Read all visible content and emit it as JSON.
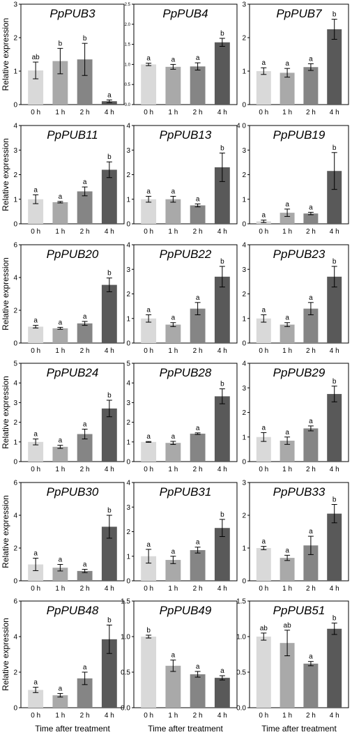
{
  "chart_data": [
    {
      "type": "bar",
      "title": "PpPUB3",
      "categories": [
        "0 h",
        "1 h",
        "2 h",
        "4 h"
      ],
      "values": [
        1.02,
        1.3,
        1.35,
        0.1
      ],
      "errors": [
        0.25,
        0.38,
        0.48,
        0.04
      ],
      "letters": [
        "ab",
        "b",
        "b",
        "a"
      ],
      "ylim": [
        0,
        3
      ],
      "yticks": [
        "0",
        "1",
        "2",
        "3"
      ]
    },
    {
      "type": "bar",
      "title": "PpPUB4",
      "categories": [
        "0 h",
        "1 h",
        "2 h",
        "4 h"
      ],
      "values": [
        1.0,
        0.94,
        0.95,
        1.55
      ],
      "errors": [
        0.03,
        0.06,
        0.09,
        0.1
      ],
      "letters": [
        "a",
        "a",
        "a",
        "b"
      ],
      "ylim": [
        0,
        2.5
      ],
      "yticks": [
        "0.0",
        "0.5",
        "1.0",
        "1.5",
        "2.0",
        "2.5"
      ]
    },
    {
      "type": "bar",
      "title": "PpPUB7",
      "categories": [
        "0 h",
        "1 h",
        "2 h",
        "4 h"
      ],
      "values": [
        1.0,
        0.95,
        1.12,
        2.25
      ],
      "errors": [
        0.1,
        0.13,
        0.1,
        0.3
      ],
      "letters": [
        "a",
        "a",
        "a",
        "b"
      ],
      "ylim": [
        0,
        3
      ],
      "yticks": [
        "0",
        "1",
        "2",
        "3"
      ]
    },
    {
      "type": "bar",
      "title": "PpPUB11",
      "categories": [
        "0 h",
        "1 h",
        "2 h",
        "4 h"
      ],
      "values": [
        1.0,
        0.88,
        1.32,
        2.2
      ],
      "errors": [
        0.18,
        0.03,
        0.18,
        0.32
      ],
      "letters": [
        "a",
        "a",
        "a",
        "b"
      ],
      "ylim": [
        0,
        4
      ],
      "yticks": [
        "0",
        "1",
        "2",
        "3",
        "4"
      ]
    },
    {
      "type": "bar",
      "title": "PpPUB13",
      "categories": [
        "0 h",
        "1 h",
        "2 h",
        "4 h"
      ],
      "values": [
        1.0,
        1.0,
        0.75,
        2.3
      ],
      "errors": [
        0.12,
        0.12,
        0.06,
        0.58
      ],
      "letters": [
        "a",
        "a",
        "a",
        "b"
      ],
      "ylim": [
        0,
        4
      ],
      "yticks": [
        "0",
        "1",
        "2",
        "3",
        "4"
      ]
    },
    {
      "type": "bar",
      "title": "PpPUB19",
      "categories": [
        "0 h",
        "1 h",
        "2 h",
        "4 h"
      ],
      "values": [
        0.1,
        0.45,
        0.42,
        2.15
      ],
      "errors": [
        0.05,
        0.15,
        0.05,
        0.75
      ],
      "letters": [
        "a",
        "a",
        "a",
        "b"
      ],
      "ylim": [
        0,
        4
      ],
      "yticks": [
        "0",
        "1",
        "2",
        "3",
        "4 0"
      ]
    },
    {
      "type": "bar",
      "title": "PpPUB20",
      "categories": [
        "0 h",
        "1 h",
        "2 h",
        "4 h"
      ],
      "values": [
        1.0,
        0.9,
        1.2,
        3.55
      ],
      "errors": [
        0.08,
        0.06,
        0.12,
        0.42
      ],
      "letters": [
        "a",
        "a",
        "a",
        "b"
      ],
      "ylim": [
        0,
        6
      ],
      "yticks": [
        "0",
        "2",
        "4",
        "6"
      ]
    },
    {
      "type": "bar",
      "title": "PpPUB22",
      "categories": [
        "0 h",
        "1 h",
        "2 h",
        "4 h"
      ],
      "values": [
        1.0,
        0.75,
        1.4,
        2.7
      ],
      "errors": [
        0.15,
        0.08,
        0.25,
        0.42
      ],
      "letters": [
        "a",
        "a",
        "a",
        "b"
      ],
      "ylim": [
        0,
        4
      ],
      "yticks": [
        "0",
        "1",
        "2",
        "3",
        "4"
      ]
    },
    {
      "type": "bar",
      "title": "PpPUB23",
      "categories": [
        "0 h",
        "1 h",
        "2 h",
        "4 h"
      ],
      "values": [
        1.0,
        0.75,
        1.4,
        2.7
      ],
      "errors": [
        0.15,
        0.08,
        0.25,
        0.42
      ],
      "letters": [
        "a",
        "a",
        "a",
        "b"
      ],
      "ylim": [
        0,
        4
      ],
      "yticks": [
        "0",
        "1",
        "2",
        "3",
        "4"
      ]
    },
    {
      "type": "bar",
      "title": "PpPUB24",
      "categories": [
        "0 h",
        "1 h",
        "2 h",
        "4 h"
      ],
      "values": [
        1.0,
        0.75,
        1.4,
        2.7
      ],
      "errors": [
        0.15,
        0.08,
        0.25,
        0.42
      ],
      "letters": [
        "a",
        "a",
        "a",
        "b"
      ],
      "ylim": [
        0,
        5
      ],
      "yticks": [
        "0",
        "1",
        "2",
        "3",
        "4",
        "5"
      ]
    },
    {
      "type": "bar",
      "title": "PpPUB28",
      "categories": [
        "0 h",
        "1 h",
        "2 h",
        "4 h"
      ],
      "values": [
        1.0,
        0.95,
        1.42,
        3.32
      ],
      "errors": [
        0.02,
        0.08,
        0.04,
        0.38
      ],
      "letters": [
        "a",
        "a",
        "a",
        "b"
      ],
      "ylim": [
        0,
        5
      ],
      "yticks": [
        "0",
        "1",
        "2",
        "3",
        "4",
        "5"
      ]
    },
    {
      "type": "bar",
      "title": "PpPUB29",
      "categories": [
        "0 h",
        "1 h",
        "2 h",
        "4 h"
      ],
      "values": [
        1.0,
        0.85,
        1.35,
        2.75
      ],
      "errors": [
        0.18,
        0.15,
        0.1,
        0.32
      ],
      "letters": [
        "a",
        "a",
        "a",
        "b"
      ],
      "ylim": [
        0,
        4
      ],
      "yticks": [
        "0",
        "1",
        "2",
        "3",
        "4"
      ]
    },
    {
      "type": "bar",
      "title": "PpPUB30",
      "categories": [
        "0 h",
        "1 h",
        "2 h",
        "4 h"
      ],
      "values": [
        1.0,
        0.8,
        0.6,
        3.3
      ],
      "errors": [
        0.38,
        0.2,
        0.1,
        0.7
      ],
      "letters": [
        "a",
        "a",
        "a",
        "b"
      ],
      "ylim": [
        0,
        6
      ],
      "yticks": [
        "0",
        "2",
        "4",
        "6"
      ]
    },
    {
      "type": "bar",
      "title": "PpPUB31",
      "categories": [
        "0 h",
        "1 h",
        "2 h",
        "4 h"
      ],
      "values": [
        1.0,
        0.85,
        1.25,
        2.15
      ],
      "errors": [
        0.28,
        0.15,
        0.12,
        0.35
      ],
      "letters": [
        "a",
        "a",
        "a",
        "b"
      ],
      "ylim": [
        0,
        4
      ],
      "yticks": [
        "0",
        "1",
        "2",
        "3",
        "4"
      ]
    },
    {
      "type": "bar",
      "title": "PpPUB33",
      "categories": [
        "0 h",
        "1 h",
        "2 h",
        "4 h"
      ],
      "values": [
        1.0,
        0.7,
        1.08,
        2.05
      ],
      "errors": [
        0.05,
        0.08,
        0.28,
        0.28
      ],
      "letters": [
        "a",
        "a",
        "a",
        "b"
      ],
      "ylim": [
        0,
        3
      ],
      "yticks": [
        "0",
        "1",
        "2",
        "3"
      ]
    },
    {
      "type": "bar",
      "title": "PpPUB48",
      "categories": [
        "0 h",
        "1 h",
        "2 h",
        "4 h"
      ],
      "values": [
        1.0,
        0.7,
        1.65,
        3.85
      ],
      "errors": [
        0.15,
        0.1,
        0.35,
        0.8
      ],
      "letters": [
        "a",
        "a",
        "a",
        "b"
      ],
      "ylim": [
        0,
        6
      ],
      "yticks": [
        "0",
        "2",
        "4",
        "6"
      ]
    },
    {
      "type": "bar",
      "title": "PpPUB49",
      "categories": [
        "0 h",
        "1 h",
        "2 h",
        "4 h"
      ],
      "values": [
        1.0,
        0.59,
        0.47,
        0.42
      ],
      "errors": [
        0.02,
        0.08,
        0.04,
        0.03
      ],
      "letters": [
        "b",
        "a",
        "a",
        "a"
      ],
      "ylim": [
        0,
        1.5
      ],
      "yticks": [
        "0.0",
        "0.5",
        "1.0",
        "1.5"
      ]
    },
    {
      "type": "bar",
      "title": "PpPUB51",
      "categories": [
        "0 h",
        "1 h",
        "2 h",
        "4 h"
      ],
      "values": [
        1.0,
        0.91,
        0.62,
        1.11
      ],
      "errors": [
        0.05,
        0.18,
        0.03,
        0.08
      ],
      "letters": [
        "ab",
        "ab",
        "a",
        "b"
      ],
      "ylim": [
        0,
        1.5
      ],
      "yticks": [
        "0.0",
        "0.5",
        "1.0",
        "1.5"
      ]
    }
  ],
  "labels": {
    "ylabel": "Relative expression",
    "xlabel": "Time after treatment"
  },
  "colors": {
    "bars": [
      "#d9d9d9",
      "#a9a9a9",
      "#858585",
      "#595959"
    ],
    "axis": "#000000"
  }
}
